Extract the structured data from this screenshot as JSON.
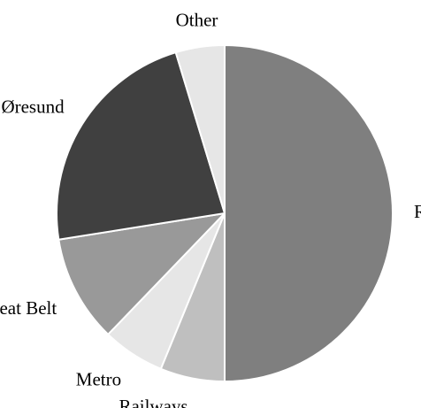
{
  "chart_data": {
    "type": "pie",
    "title": "",
    "start_angle_deg": 0,
    "direction": "clockwise",
    "slices": [
      {
        "label": "Roads",
        "value": 50.0,
        "color": "#7f7f7f"
      },
      {
        "label": "Railways",
        "value": 6.2,
        "color": "#bfbfbf"
      },
      {
        "label": "Metro",
        "value": 6.0,
        "color": "#e6e6e6"
      },
      {
        "label": "Great Belt",
        "value": 10.3,
        "color": "#999999"
      },
      {
        "label": "Øresund",
        "value": 22.8,
        "color": "#404040"
      },
      {
        "label": "Other",
        "value": 4.7,
        "color": "#e6e6e6"
      }
    ],
    "edge_color": "#ffffff"
  }
}
